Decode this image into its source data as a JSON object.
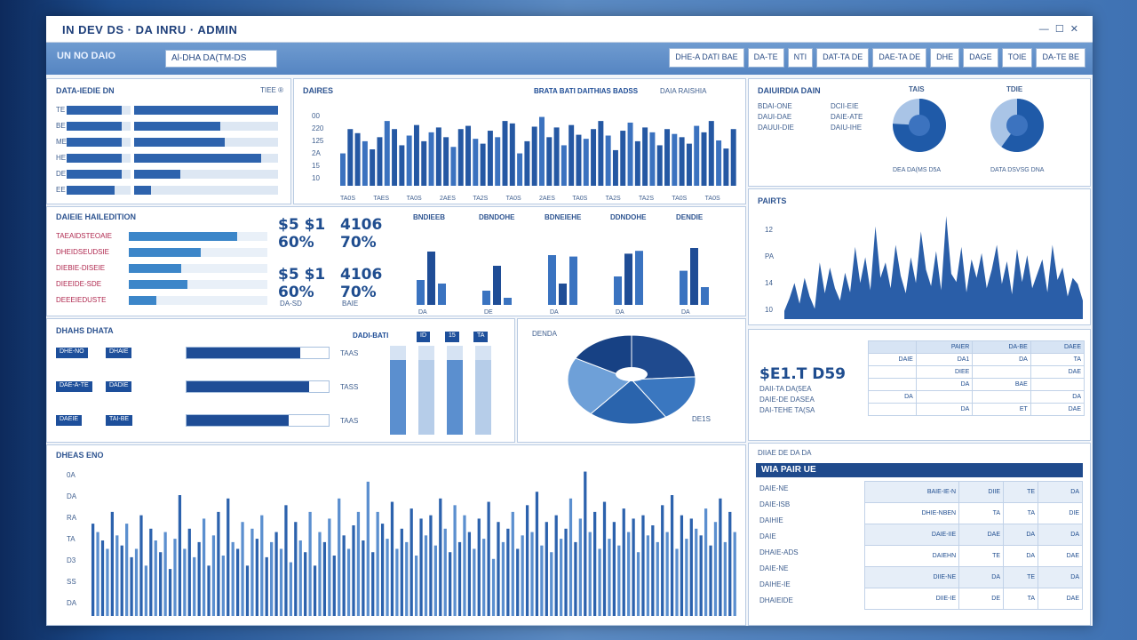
{
  "app": {
    "title": "IN DEV DS  ·  DA  INRU  ·  ADMIN",
    "window_controls": "— ☐ ✕"
  },
  "toolbar": {
    "nav_label": "UN  NO  DAIO",
    "search_value": "Al-DHA  DA(TM-DS",
    "buttons": [
      "DHE-A DATI BAE",
      "DA-TE",
      "NTI",
      "DAT-TA DE",
      "DAE-TA DE",
      "DHE",
      "DAGE",
      "TOIE",
      "DA-TE BE"
    ]
  },
  "colors": {
    "primary": "#1f4d96",
    "accent": "#3a73c0",
    "light": "#9dbce2",
    "track": "#dde7f3"
  },
  "panel_bars": {
    "title": "DATA-IEDIE DN",
    "corner_label": "TIEE  ®",
    "rows": [
      {
        "label": "TE",
        "left": 0.86,
        "right": 1.0
      },
      {
        "label": "BE",
        "left": 0.86,
        "right": 0.6
      },
      {
        "label": "ME",
        "left": 0.86,
        "right": 0.63
      },
      {
        "label": "HE",
        "left": 0.86,
        "right": 0.88
      },
      {
        "label": "DE",
        "left": 0.86,
        "right": 0.32
      },
      {
        "label": "EE",
        "left": 0.75,
        "right": 0.12
      }
    ]
  },
  "panel_top_chart": {
    "title": "DAIRES",
    "legend": "BRATA BATI DAITHIAS BADSS",
    "legend_extra": "DAIA RAISHIA",
    "y_ticks": [
      "00",
      "220",
      "125",
      "2A",
      "15",
      "10"
    ],
    "x_ticks": [
      "TA0S",
      "TAES",
      "TA0S",
      "2AES",
      "TA2S",
      "TA0S",
      "2AES",
      "TA0S",
      "TA2S",
      "TA2S",
      "TA0S",
      "TA0S"
    ],
    "values": [
      40,
      70,
      65,
      55,
      45,
      60,
      80,
      70,
      50,
      62,
      75,
      55,
      66,
      72,
      60,
      48,
      70,
      74,
      58,
      52,
      68,
      60,
      80,
      77,
      40,
      55,
      73,
      85,
      60,
      72,
      50,
      75,
      63,
      58,
      70,
      80,
      62,
      44,
      68,
      78,
      55,
      72,
      66,
      50,
      70,
      64,
      60,
      52,
      74,
      66,
      80,
      56,
      46,
      70
    ]
  },
  "panel_donuts": {
    "title": "DAIUIRDIA  DAIN",
    "rows": [
      {
        "a": "BDAI-ONE",
        "b": "DCII-EIE"
      },
      {
        "a": "DAUI-DAE",
        "b": "DAIE-ATE"
      },
      {
        "a": "DAUUI-DIE",
        "b": "DAIU-IHE"
      }
    ],
    "donuts": [
      {
        "title": "TAIS",
        "caption": "DEA  DA(MS  D5A",
        "value": 0.76
      },
      {
        "title": "TDIE",
        "caption": "DATA  DSVSG  DNA",
        "value": 0.6
      }
    ]
  },
  "panel_kpi": {
    "title": "DAIEIE HAILEDITION",
    "rows": [
      {
        "label": "TAEAIDSTEOAIE",
        "value": 0.78
      },
      {
        "label": "DHEIDSEUDSIE",
        "value": 0.52
      },
      {
        "label": "DIEBIE-DISEIE",
        "value": 0.38
      },
      {
        "label": "DIEEIDE-SDE",
        "value": 0.42
      },
      {
        "label": "DEEEIEDUSTE",
        "value": 0.2
      }
    ],
    "kpis": [
      {
        "top": "$5  $1",
        "bottom": "60%"
      },
      {
        "top": "4106",
        "bottom": "70%"
      },
      {
        "top": "$5  $1",
        "bottom": "60%"
      },
      {
        "top": "4106",
        "bottom": "70%"
      }
    ],
    "kpi_captions": [
      "DA-SD",
      "BAIE"
    ],
    "mini_titles": [
      "BNDIEEB",
      "DBNDOHE",
      "BDNEIEHE",
      "DDNDOHE",
      "DENDIE"
    ],
    "mini_bars": [
      [
        0.35,
        0.75,
        0.3
      ],
      [
        0.2,
        0.55,
        0.1
      ],
      [
        0.7,
        0.3,
        0.68
      ],
      [
        0.4,
        0.72,
        0.76
      ],
      [
        0.48,
        0.8,
        0.25
      ]
    ],
    "mini_captions": [
      "DA",
      "DE",
      "DA",
      "DA",
      "DA"
    ]
  },
  "panel_area": {
    "title": "PAIRTS",
    "y_ticks": [
      "12",
      "PA",
      "14",
      "10"
    ],
    "values": [
      8,
      20,
      35,
      15,
      40,
      22,
      10,
      55,
      25,
      50,
      30,
      18,
      45,
      26,
      70,
      35,
      60,
      28,
      90,
      40,
      55,
      30,
      72,
      42,
      25,
      60,
      35,
      85,
      48,
      32,
      66,
      28,
      100,
      44,
      36,
      70,
      26,
      58,
      40,
      64,
      30,
      48,
      72,
      34,
      56,
      24,
      68,
      36,
      62,
      30,
      44,
      58,
      26,
      72,
      38,
      50,
      22,
      40,
      34,
      18
    ]
  },
  "panel_progress": {
    "title": "DHAHS DHATA",
    "rows": [
      {
        "chip": "DHE-NO",
        "chip2": "DHAIE",
        "value": 0.8,
        "tail": "TAAS"
      },
      {
        "chip": "DAE-A-TE",
        "chip2": "DADIE",
        "value": 0.86,
        "tail": "TASS"
      },
      {
        "chip": "DAEIE",
        "chip2": "TAI-BE",
        "value": 0.72,
        "tail": "TAAS"
      }
    ],
    "col_header": "DADI-BATI",
    "col_tags": [
      "ID",
      "15",
      "TA"
    ],
    "col_values": [
      0.84,
      0.84,
      0.84,
      0.84
    ]
  },
  "panel_pie": {
    "label_left": "DENDA ",
    "label_right": "DE1S",
    "slices": [
      0.24,
      0.17,
      0.2,
      0.22,
      0.17
    ]
  },
  "panel_table": {
    "headline": "$E1.T D59",
    "sub_lines": [
      "DAII-TA  DA(5EA",
      "DAIE-DE  DASEA",
      "DAI-TEHE  TA(SA"
    ],
    "header": [
      "",
      "PAIER",
      "DA-BE",
      "DAEE"
    ],
    "rows": [
      [
        "DAIE",
        "DA1",
        "DA",
        "TA"
      ],
      [
        "",
        "DIEE",
        "",
        "DAE"
      ],
      [
        "",
        "DA",
        "BAE",
        ""
      ],
      [
        "DA",
        "",
        "",
        "DA"
      ],
      [
        "",
        "DA",
        "ET",
        "DAE"
      ]
    ]
  },
  "panel_bottom_chart": {
    "title": "DHEAS ENO",
    "y_ticks": [
      "0A",
      "DA",
      "RA",
      "TA",
      "D3",
      "SS",
      "DA"
    ],
    "values": [
      55,
      50,
      45,
      40,
      62,
      48,
      42,
      55,
      35,
      40,
      60,
      30,
      52,
      45,
      38,
      50,
      28,
      46,
      72,
      40,
      52,
      35,
      44,
      58,
      30,
      48,
      62,
      36,
      70,
      44,
      40,
      56,
      30,
      52,
      46,
      60,
      35,
      44,
      50,
      40,
      66,
      32,
      56,
      45,
      38,
      62,
      30,
      50,
      44,
      58,
      36,
      70,
      48,
      40,
      54,
      62,
      45,
      80,
      38,
      62,
      55,
      46,
      68,
      40,
      52,
      44,
      64,
      36,
      58,
      48,
      60,
      42,
      70,
      52,
      38,
      66,
      44,
      60,
      50,
      40,
      58,
      46,
      68,
      34,
      56,
      44,
      52,
      62,
      40,
      48,
      66,
      50,
      74,
      42,
      56,
      38,
      60,
      46,
      52,
      70,
      44,
      58,
      86,
      50,
      62,
      40,
      68,
      46,
      56,
      42,
      64,
      50,
      58,
      38,
      60,
      48,
      54,
      44,
      66,
      50,
      72,
      40,
      60,
      46,
      58,
      52,
      48,
      64,
      42,
      56,
      70,
      44,
      62,
      50
    ]
  },
  "panel_ledger": {
    "title": "DIIAE  DE  DA  DA",
    "header": "WIA PAIR UE",
    "left_lines": [
      "DAIE-NE",
      "DAIE-ISB",
      "DAIHIE",
      "DAIE",
      "DHAIE-ADS",
      "DAIE-NE",
      "DAIHE-IE",
      "DHAIEIDE"
    ],
    "rows": [
      [
        "BAIE-IE-N",
        "DIIE",
        "TE",
        "DA"
      ],
      [
        "DHIE-NBEN",
        "TA",
        "TA",
        "DIE"
      ],
      [
        "DAIE-IIE",
        "DAE",
        "DA",
        "DA"
      ],
      [
        "DAIEHN",
        "TE",
        "DA",
        "DAE"
      ],
      [
        "DIIE-NE",
        "DA",
        "TE",
        "DA"
      ],
      [
        "DIIE-IE",
        "DE",
        "TA",
        "DAE"
      ]
    ]
  }
}
